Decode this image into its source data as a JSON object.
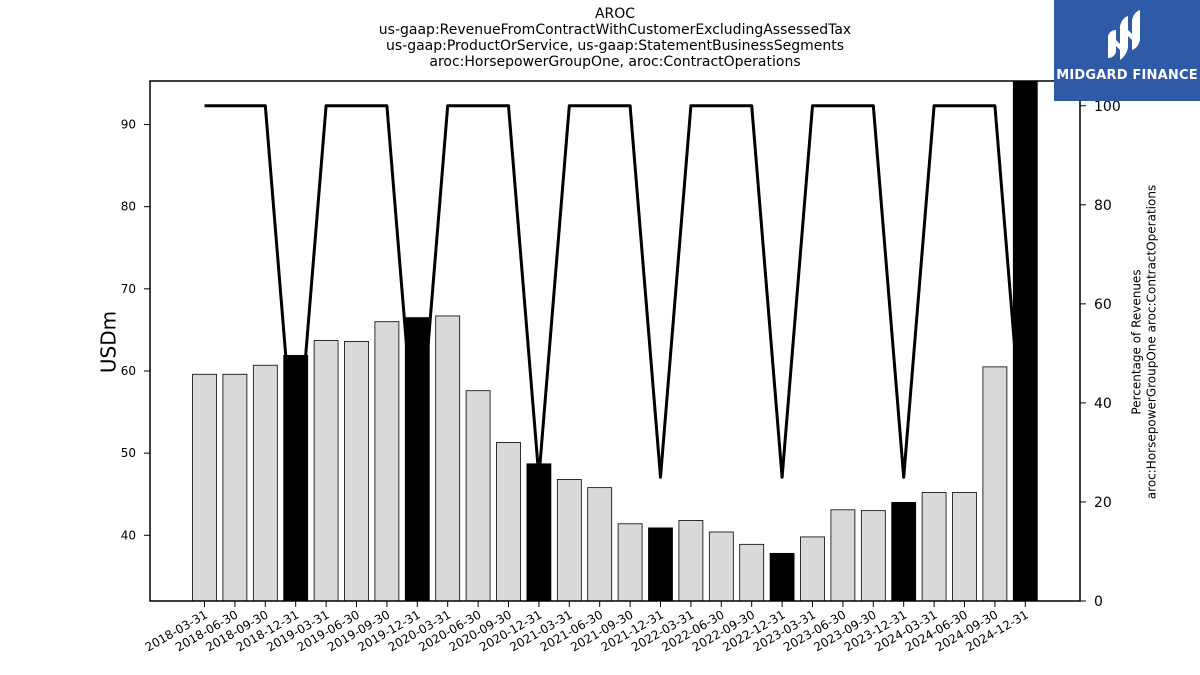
{
  "title_lines": [
    "AROC",
    "us-gaap:RevenueFromContractWithCustomerExcludingAssessedTax",
    "us-gaap:ProductOrService, us-gaap:StatementBusinessSegments",
    "aroc:HorsepowerGroupOne, aroc:ContractOperations"
  ],
  "logo": {
    "text": "MIDGARD FINANCE",
    "icon": "midgard-logo-icon",
    "color": "#2f5aa8"
  },
  "chart_data": {
    "type": "bar",
    "ylabel": "USDm",
    "y2label_lines": [
      "Percentage of Revenues",
      "aroc:HorsepowerGroupOne aroc:ContractOperations"
    ],
    "ylim": [
      32,
      95.3
    ],
    "y2lim": [
      0,
      105
    ],
    "yticks": [
      40,
      50,
      60,
      70,
      80,
      90
    ],
    "y2ticks": [
      0,
      20,
      40,
      60,
      80,
      100
    ],
    "categories": [
      "2018-03-31",
      "2018-06-30",
      "2018-09-30",
      "2018-12-31",
      "2019-03-31",
      "2019-06-30",
      "2019-09-30",
      "2019-12-31",
      "2020-03-31",
      "2020-06-30",
      "2020-09-30",
      "2020-12-31",
      "2021-03-31",
      "2021-06-30",
      "2021-09-30",
      "2021-12-31",
      "2022-03-31",
      "2022-06-30",
      "2022-09-30",
      "2022-12-31",
      "2023-03-31",
      "2023-06-30",
      "2023-09-30",
      "2023-12-31",
      "2024-03-31",
      "2024-06-30",
      "2024-09-30",
      "2024-12-31"
    ],
    "series": [
      {
        "axis": "left",
        "kind": "bar",
        "values": [
          59.6,
          59.6,
          60.7,
          61.9,
          63.7,
          63.6,
          66.0,
          66.5,
          66.7,
          57.6,
          51.3,
          48.7,
          46.8,
          45.8,
          41.4,
          40.9,
          41.8,
          40.4,
          38.9,
          37.8,
          39.8,
          43.1,
          43.0,
          44.0,
          45.2,
          45.2,
          60.5,
          95.3
        ],
        "colors": [
          "#d9d9d9",
          "#d9d9d9",
          "#d9d9d9",
          "#000000",
          "#d9d9d9",
          "#d9d9d9",
          "#d9d9d9",
          "#000000",
          "#d9d9d9",
          "#d9d9d9",
          "#d9d9d9",
          "#000000",
          "#d9d9d9",
          "#d9d9d9",
          "#d9d9d9",
          "#000000",
          "#d9d9d9",
          "#d9d9d9",
          "#d9d9d9",
          "#000000",
          "#d9d9d9",
          "#d9d9d9",
          "#d9d9d9",
          "#000000",
          "#d9d9d9",
          "#d9d9d9",
          "#d9d9d9",
          "#000000"
        ]
      },
      {
        "axis": "right",
        "kind": "line",
        "values": [
          100,
          100,
          100,
          25,
          100,
          100,
          100,
          25,
          100,
          100,
          100,
          25,
          100,
          100,
          100,
          25,
          100,
          100,
          100,
          25,
          100,
          100,
          100,
          25,
          100,
          100,
          100,
          25
        ]
      }
    ],
    "grid": false,
    "legend": "none"
  }
}
